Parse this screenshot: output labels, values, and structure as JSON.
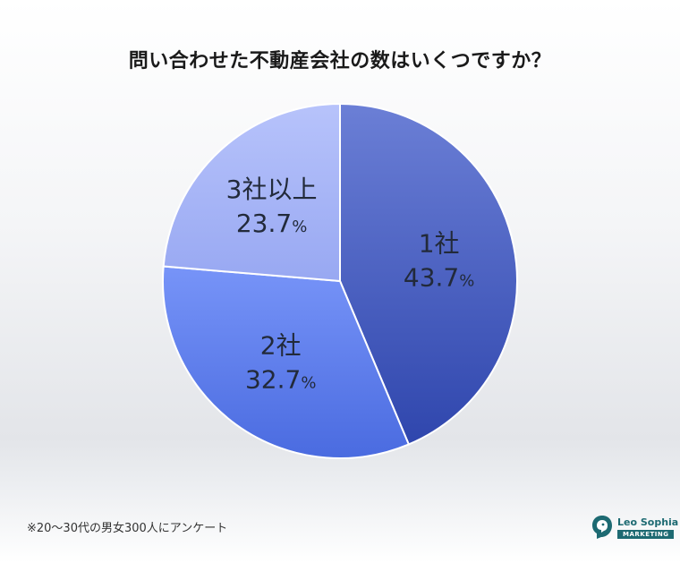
{
  "chart_data": {
    "type": "pie",
    "title": "問い合わせた不動産会社の数はいくつですか？",
    "slices": [
      {
        "label": "1社",
        "value": 43.7,
        "value_text": "43.7",
        "unit": "%",
        "color": "#4a63c7"
      },
      {
        "label": "2社",
        "value": 32.7,
        "value_text": "32.7",
        "unit": "%",
        "color": "#6182ea"
      },
      {
        "label": "3社以上",
        "value": 23.7,
        "value_text": "23.7",
        "unit": "%",
        "color": "#a9b7f7"
      }
    ],
    "start_direction": "top",
    "order": "clockwise"
  },
  "footnote": "※20〜30代の男女300人にアンケート",
  "logo": {
    "name": "Leo Sophia",
    "tag": "MARKETING",
    "color": "#1d6a72"
  }
}
